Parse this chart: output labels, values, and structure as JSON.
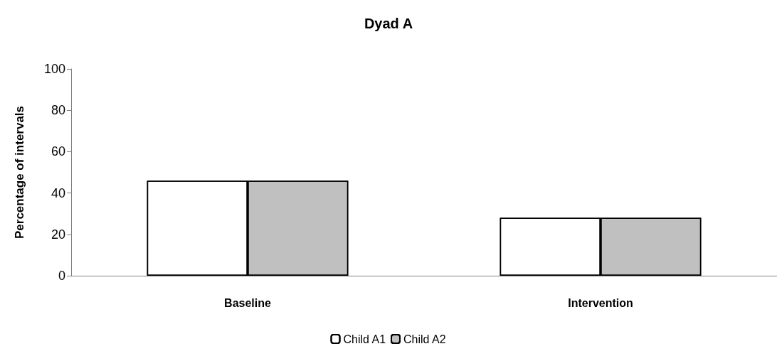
{
  "chart_data": {
    "type": "bar",
    "title": "Dyad A",
    "ylabel": "Percentage of intervals",
    "categories": [
      "Baseline",
      "Intervention"
    ],
    "series": [
      {
        "name": "Child A1",
        "color": "#ffffff",
        "values": [
          46,
          28
        ]
      },
      {
        "name": "Child A2",
        "color": "#c0c0c0",
        "values": [
          46,
          28
        ]
      }
    ],
    "ylim": [
      0,
      100
    ],
    "yticks": [
      0,
      20,
      40,
      60,
      80,
      100
    ],
    "grid": false,
    "legend": "bottom"
  }
}
